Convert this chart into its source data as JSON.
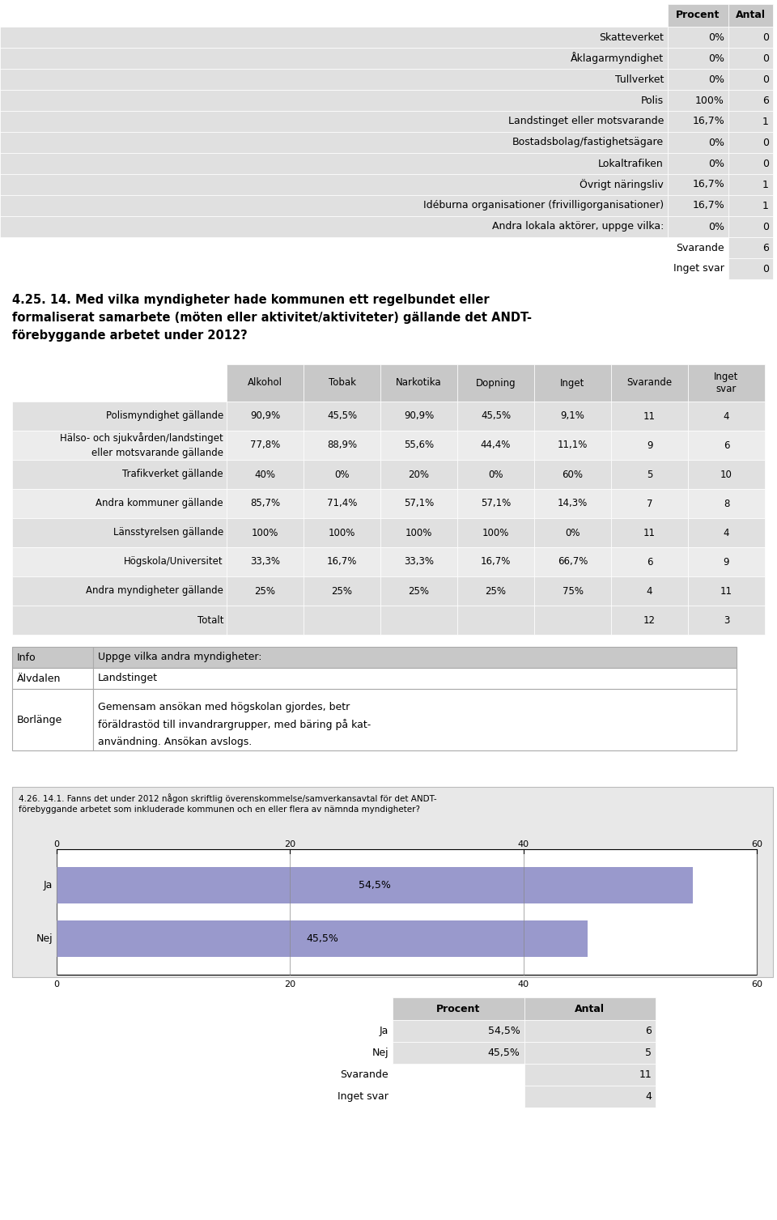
{
  "table1_rows": [
    [
      "Skatteverket",
      "0%",
      "0"
    ],
    [
      "Åklagarmyndighet",
      "0%",
      "0"
    ],
    [
      "Tullverket",
      "0%",
      "0"
    ],
    [
      "Polis",
      "100%",
      "6"
    ],
    [
      "Landstinget eller motsvarande",
      "16,7%",
      "1"
    ],
    [
      "Bostadsbolag/fastighetsägare",
      "0%",
      "0"
    ],
    [
      "Lokaltrafiken",
      "0%",
      "0"
    ],
    [
      "Övrigt näringsliv",
      "16,7%",
      "1"
    ],
    [
      "Idéburna organisationer (frivilligorganisationer)",
      "16,7%",
      "1"
    ],
    [
      "Andra lokala aktörer, uppge vilka:",
      "0%",
      "0"
    ]
  ],
  "table1_footer": [
    [
      "Svarande",
      "6"
    ],
    [
      "Inget svar",
      "0"
    ]
  ],
  "table1_headers": [
    "",
    "Procent",
    "Antal"
  ],
  "section_title": "4.25. 14. Med vilka myndigheter hade kommunen ett regelbundet eller\nformaliserat samarbete (möten eller aktivitet/aktiviteter) gällande det ANDT-\nförebyggande arbetet under 2012?",
  "table2_headers": [
    "",
    "Alkohol",
    "Tobak",
    "Narkotika",
    "Dopning",
    "Inget",
    "Svarande",
    "Inget\nsvar"
  ],
  "table2_rows": [
    [
      "Polismyndighet gällande",
      "90,9%45,5%",
      "90,9%",
      "45,5%",
      "9,1%",
      "11",
      "4"
    ],
    [
      "Hälso- och sjukvården/landstinget\neller motsvarande gällande",
      "77,8%88,9%",
      "55,6%",
      "44,4%11,1%",
      "9",
      "6"
    ],
    [
      "Trafikverket gällande",
      "40%0%",
      "20%",
      "0%60%",
      "5",
      "10"
    ],
    [
      "Andra kommuner gällande",
      "85,7%71,4%",
      "57,1%",
      "57,1%14,3%",
      "7",
      "8"
    ],
    [
      "Länsstyrelsen gällande",
      "100%100%",
      "100%",
      "100%0%",
      "11",
      "4"
    ],
    [
      "Högskola/Universitet",
      "33,3%16,7%",
      "33,3%",
      "16,7%66,7%",
      "6",
      "9"
    ],
    [
      "Andra myndigheter gällande",
      "25%25%",
      "25%",
      "25%75%",
      "4",
      "11"
    ]
  ],
  "table2_rows_full": [
    [
      "Polismyndighet gällande",
      "90,9%",
      "45,5%",
      "90,9%",
      "45,5%",
      "9,1%",
      "11",
      "4"
    ],
    [
      "Hälso- och sjukvården/landstinget\neller motsvarande gällande",
      "77,8%",
      "88,9%",
      "55,6%",
      "44,4%",
      "11,1%",
      "9",
      "6"
    ],
    [
      "Trafikverket gällande",
      "40%",
      "0%",
      "20%",
      "0%",
      "60%",
      "5",
      "10"
    ],
    [
      "Andra kommuner gällande",
      "85,7%",
      "71,4%",
      "57,1%",
      "57,1%",
      "14,3%",
      "7",
      "8"
    ],
    [
      "Länsstyrelsen gällande",
      "100%",
      "100%",
      "100%",
      "100%",
      "0%",
      "11",
      "4"
    ],
    [
      "Högskola/Universitet",
      "33,3%",
      "16,7%",
      "33,3%",
      "16,7%",
      "66,7%",
      "6",
      "9"
    ],
    [
      "Andra myndigheter gällande",
      "25%",
      "25%",
      "25%",
      "25%",
      "75%",
      "4",
      "11"
    ]
  ],
  "table2_totalt": [
    "Totalt",
    "",
    "",
    "",
    "",
    "",
    "12",
    "3"
  ],
  "table3_rows": [
    [
      "Info",
      "Uppge vilka andra myndigheter:"
    ],
    [
      "Älvdalen",
      "Landstinget"
    ],
    [
      "Borlänge",
      "Gemensam ansökan med högskolan gjordes, betr\nföräldrastöd till invandrargrupper, med bäring på kat-\nanvändning. Ansökan avslogs."
    ]
  ],
  "chart_title": "4.26. 14.1. Fanns det under 2012 någon skriftlig överenskommelse/samverkansavtal för det ANDT-\nförebyggande arbetet som inkluderade kommunen och en eller flera av nämnda myndigheter?",
  "chart_bars": [
    {
      "label": "Ja",
      "value": 54.5,
      "label_text": "54,5%"
    },
    {
      "label": "Nej",
      "value": 45.5,
      "label_text": "45,5%"
    }
  ],
  "chart_xlim": [
    0,
    60
  ],
  "chart_xticks": [
    0,
    20,
    40,
    60
  ],
  "chart_bar_color": "#9999cc",
  "table4_rows": [
    [
      "Ja",
      "54,5%",
      "6"
    ],
    [
      "Nej",
      "45,5%",
      "5"
    ]
  ],
  "table4_footer": [
    [
      "Svarande",
      "11"
    ],
    [
      "Inget svar",
      "4"
    ]
  ],
  "table4_headers": [
    "",
    "Procent",
    "Antal"
  ],
  "bg_color": "#ffffff",
  "cell_bg_light": "#e0e0e0",
  "cell_bg_mid": "#c8c8c8",
  "text_color": "#000000"
}
